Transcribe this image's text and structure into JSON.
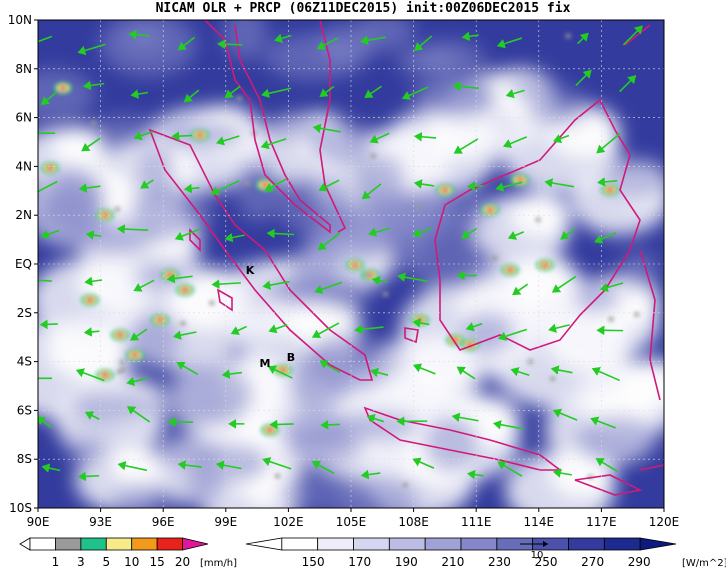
{
  "title": "NICAM OLR + PRCP (06Z11DEC2015) init:00Z06DEC2015 fix",
  "map": {
    "lon_ticks": [
      "90E",
      "93E",
      "96E",
      "99E",
      "102E",
      "105E",
      "108E",
      "111E",
      "114E",
      "117E",
      "120E"
    ],
    "lat_ticks": [
      "10N",
      "8N",
      "6N",
      "4N",
      "2N",
      "EQ",
      "2S",
      "4S",
      "6S",
      "8S",
      "10S"
    ],
    "place_labels": [
      "K",
      "M",
      "B"
    ],
    "coastline_color": "#d01a7a",
    "wind_color": "#22cc22"
  },
  "prcp_legend": {
    "labels": [
      "1",
      "3",
      "5",
      "10",
      "15",
      "20"
    ],
    "unit": "[mm/h]",
    "colors": [
      "#ffffff",
      "#9a9a9a",
      "#1dc38a",
      "#f5eb8a",
      "#f39a1a",
      "#e8241a",
      "#e0179a"
    ]
  },
  "olr_legend": {
    "labels": [
      "150",
      "170",
      "190",
      "210",
      "230",
      "250",
      "270",
      "290"
    ],
    "unit": "[W/m^2]",
    "colors": [
      "#ffffff",
      "#eeeefa",
      "#d6d6f0",
      "#bcbde4",
      "#a0a2d6",
      "#8487c8",
      "#686cba",
      "#4c52ac",
      "#333c9e",
      "#1f2a90",
      "#0e1a82"
    ],
    "vector_ref": "10"
  }
}
